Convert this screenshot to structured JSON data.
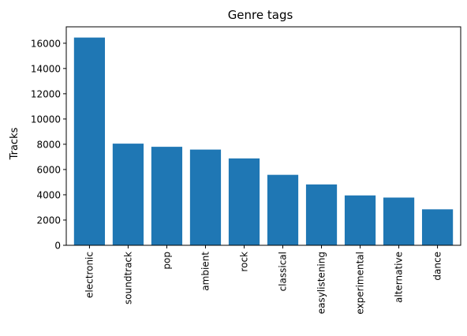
{
  "chart_data": {
    "type": "bar",
    "title": "Genre tags",
    "xlabel": "",
    "ylabel": "Tracks",
    "categories": [
      "electronic",
      "soundtrack",
      "pop",
      "ambient",
      "rock",
      "classical",
      "easylistening",
      "experimental",
      "alternative",
      "dance"
    ],
    "values": [
      16450,
      8050,
      7800,
      7580,
      6880,
      5580,
      4820,
      3950,
      3780,
      2850
    ],
    "ylim": [
      0,
      17300
    ],
    "yticks": [
      0,
      2000,
      4000,
      6000,
      8000,
      10000,
      12000,
      14000,
      16000
    ],
    "grid": false,
    "bar_color": "#1f77b4"
  }
}
